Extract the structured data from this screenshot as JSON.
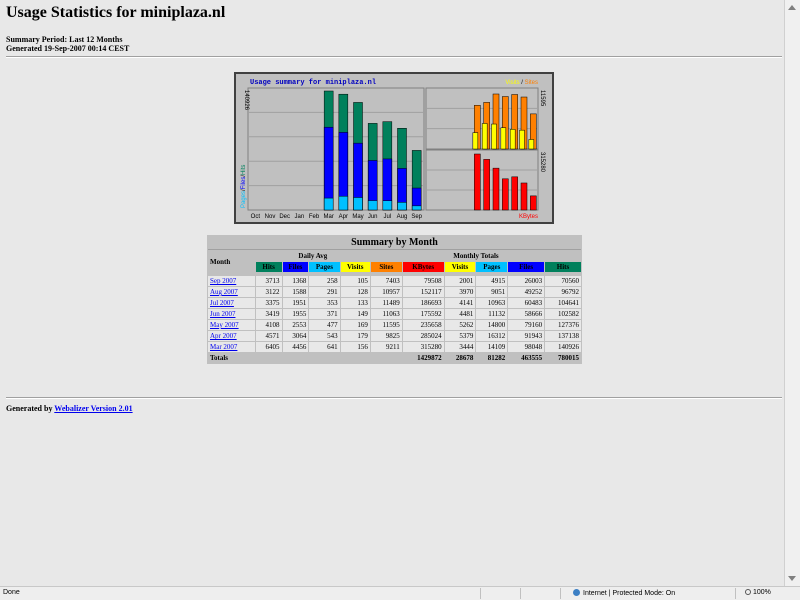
{
  "page": {
    "title": "Usage Statistics for miniplaza.nl",
    "summary_period": "Summary Period: Last 12 Months",
    "generated": "Generated 19-Sep-2007 00:14 CEST",
    "generated_by_prefix": "Generated by",
    "generator_link": "Webalizer Version 2.01"
  },
  "graph": {
    "title": "Usage summary for miniplaza.nl",
    "left_legend": [
      "Pages",
      "Files",
      "Hits"
    ],
    "left_max_label": "140926",
    "right_top_legend": [
      "Visits",
      "Sites"
    ],
    "right_top_max_label": "11595",
    "right_bottom_max_label": "315280",
    "right_bottom_legend": "KBytes",
    "months": [
      "Oct",
      "Nov",
      "Dec",
      "Jan",
      "Feb",
      "Mar",
      "Apr",
      "May",
      "Jun",
      "Jul",
      "Aug",
      "Sep"
    ],
    "colors": {
      "hits": "#00805c",
      "files": "#0000ff",
      "pages": "#00c0ff",
      "visits": "#ffff00",
      "sites": "#ff8000",
      "kbytes": "#ff0000"
    }
  },
  "summary": {
    "title": "Summary by Month",
    "month_header": "Month",
    "daily_avg_header": "Daily Avg",
    "monthly_totals_header": "Monthly Totals",
    "daily_cols": [
      "Hits",
      "Files",
      "Pages",
      "Visits"
    ],
    "monthly_cols": [
      "Sites",
      "KBytes",
      "Visits",
      "Pages",
      "Files",
      "Hits"
    ],
    "rows": [
      {
        "month": "Sep 2007",
        "d_hits": "3713",
        "d_files": "1368",
        "d_pages": "258",
        "d_visits": "105",
        "sites": "7403",
        "kbytes": "79508",
        "visits": "2001",
        "pages": "4915",
        "files": "26003",
        "hits": "70560"
      },
      {
        "month": "Aug 2007",
        "d_hits": "3122",
        "d_files": "1588",
        "d_pages": "291",
        "d_visits": "128",
        "sites": "10957",
        "kbytes": "152117",
        "visits": "3970",
        "pages": "9051",
        "files": "49252",
        "hits": "96792"
      },
      {
        "month": "Jul 2007",
        "d_hits": "3375",
        "d_files": "1951",
        "d_pages": "353",
        "d_visits": "133",
        "sites": "11489",
        "kbytes": "186693",
        "visits": "4141",
        "pages": "10963",
        "files": "60483",
        "hits": "104641"
      },
      {
        "month": "Jun 2007",
        "d_hits": "3419",
        "d_files": "1955",
        "d_pages": "371",
        "d_visits": "149",
        "sites": "11063",
        "kbytes": "175592",
        "visits": "4481",
        "pages": "11132",
        "files": "58666",
        "hits": "102582"
      },
      {
        "month": "May 2007",
        "d_hits": "4108",
        "d_files": "2553",
        "d_pages": "477",
        "d_visits": "169",
        "sites": "11595",
        "kbytes": "235658",
        "visits": "5262",
        "pages": "14800",
        "files": "79160",
        "hits": "127376"
      },
      {
        "month": "Apr 2007",
        "d_hits": "4571",
        "d_files": "3064",
        "d_pages": "543",
        "d_visits": "179",
        "sites": "9825",
        "kbytes": "285024",
        "visits": "5379",
        "pages": "16312",
        "files": "91943",
        "hits": "137138"
      },
      {
        "month": "Mar 2007",
        "d_hits": "6405",
        "d_files": "4456",
        "d_pages": "641",
        "d_visits": "156",
        "sites": "9211",
        "kbytes": "315280",
        "visits": "3444",
        "pages": "14109",
        "files": "98048",
        "hits": "140926"
      }
    ],
    "totals_label": "Totals",
    "totals": {
      "kbytes": "1429872",
      "visits": "28678",
      "pages": "81282",
      "files": "463555",
      "hits": "780015"
    }
  },
  "status_bar": {
    "left": "Done",
    "zone": "Internet | Protected Mode: On",
    "zoom": "100%"
  },
  "chart_data": {
    "type": "bar",
    "title": "Usage summary for miniplaza.nl",
    "categories": [
      "Mar 2007",
      "Apr 2007",
      "May 2007",
      "Jun 2007",
      "Jul 2007",
      "Aug 2007",
      "Sep 2007"
    ],
    "series": [
      {
        "name": "Hits",
        "values": [
          140926,
          137138,
          127376,
          102582,
          104641,
          96792,
          70560
        ]
      },
      {
        "name": "Files",
        "values": [
          98048,
          91943,
          79160,
          58666,
          60483,
          49252,
          26003
        ]
      },
      {
        "name": "Pages",
        "values": [
          14109,
          16312,
          14800,
          11132,
          10963,
          9051,
          4915
        ]
      },
      {
        "name": "Visits",
        "values": [
          3444,
          5379,
          5262,
          4481,
          4141,
          3970,
          2001
        ]
      },
      {
        "name": "Sites",
        "values": [
          9211,
          9825,
          11595,
          11063,
          11489,
          10957,
          7403
        ]
      },
      {
        "name": "KBytes",
        "values": [
          315280,
          285024,
          235658,
          175592,
          186693,
          152117,
          79508
        ]
      }
    ]
  }
}
